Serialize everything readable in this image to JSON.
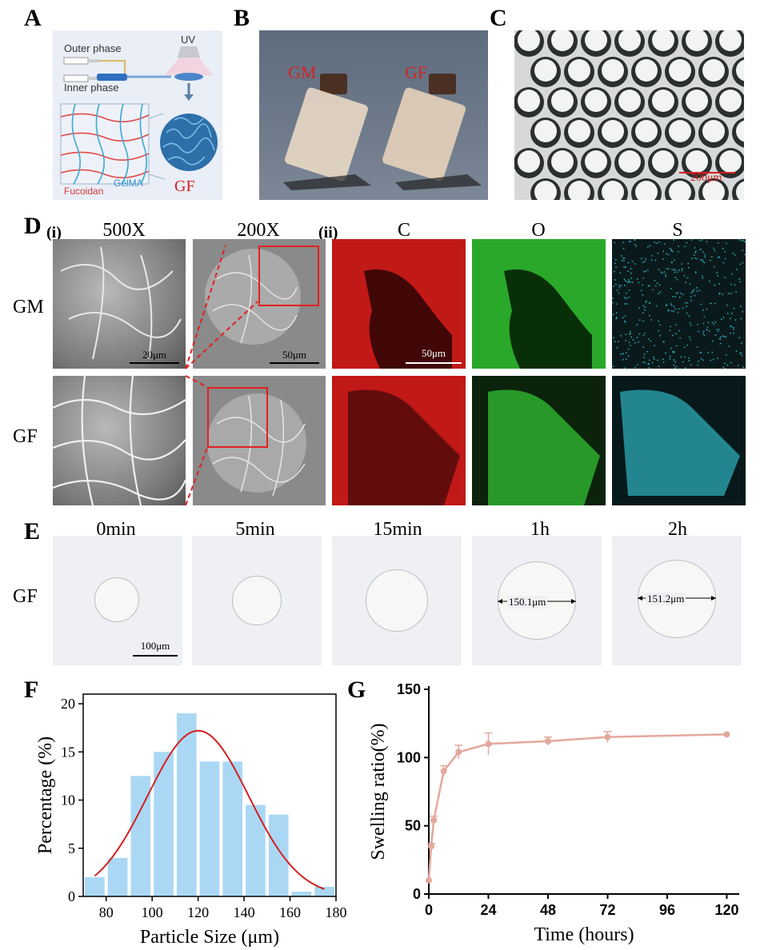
{
  "panels": {
    "A": {
      "letter": "A",
      "outer_phase": "Outer phase",
      "inner_phase": "Inner phase",
      "uv": "UV",
      "fucoidan": "Fucoidan",
      "gelma": "GelMA",
      "gf": "GF"
    },
    "B": {
      "letter": "B",
      "gm": "GM",
      "gf": "GF"
    },
    "C": {
      "letter": "C",
      "scale": "200μm"
    },
    "D": {
      "letter": "D",
      "sub_i": "(i)",
      "sub_ii": "(ii)",
      "mag_500": "500X",
      "mag_200": "200X",
      "el_c": "C",
      "el_o": "O",
      "el_s": "S",
      "row_gm": "GM",
      "row_gf": "GF",
      "scale_20": "20μm",
      "scale_50": "50μm",
      "scale_50b": "50μm"
    },
    "E": {
      "letter": "E",
      "times": [
        "0min",
        "5min",
        "15min",
        "1h",
        "2h"
      ],
      "row": "GF",
      "scale": "100μm",
      "m1": "150.1μm",
      "m2": "151.2μm"
    },
    "F": {
      "letter": "F"
    },
    "G": {
      "letter": "G"
    }
  },
  "charts": [
    {
      "type": "bar",
      "xlabel": "Particle Size (μm)",
      "ylabel": "Percentage (%)",
      "xlim": [
        70,
        180
      ],
      "ylim": [
        0,
        21
      ],
      "xticks": [
        80,
        100,
        120,
        140,
        160,
        180
      ],
      "yticks": [
        0,
        5,
        10,
        15,
        20
      ],
      "bin_width": 10,
      "bin_centers": [
        75,
        85,
        95,
        105,
        115,
        125,
        135,
        145,
        155,
        165,
        175
      ],
      "values": [
        2,
        4,
        12.5,
        15,
        19,
        14,
        14,
        9.5,
        8.5,
        0.5,
        1
      ],
      "bar_color": "#aad8f4",
      "fit": {
        "type": "gaussian",
        "amplitude": 17.2,
        "mean": 120,
        "sd": 22,
        "x_range": [
          75,
          175
        ],
        "color": "#d42020"
      }
    },
    {
      "type": "line",
      "xlabel": "Time (hours)",
      "ylabel": "Swelling ratio(%)",
      "xlim": [
        0,
        125
      ],
      "ylim": [
        0,
        150
      ],
      "xticks": [
        0,
        24,
        48,
        72,
        96,
        120
      ],
      "yticks": [
        0,
        50,
        100,
        150
      ],
      "x": [
        0,
        1,
        2,
        6,
        12,
        24,
        48,
        72,
        120
      ],
      "y": [
        10,
        35,
        54,
        90,
        104,
        110,
        112,
        115,
        117
      ],
      "err": [
        0,
        2,
        3,
        4,
        5,
        8,
        3,
        4,
        0
      ],
      "color": "#e3a89c"
    }
  ]
}
